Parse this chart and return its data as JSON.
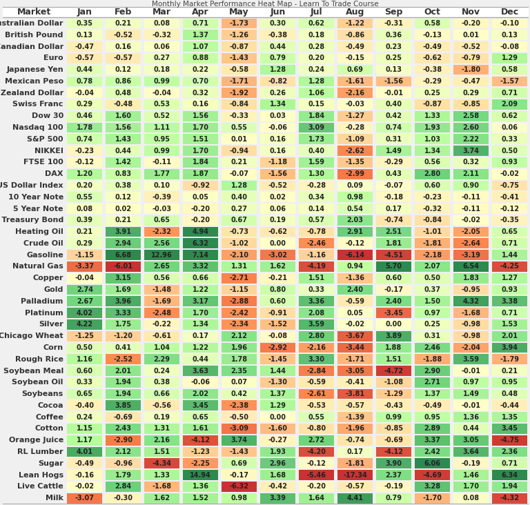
{
  "markets": [
    "Australian Dollar",
    "British Pound",
    "Canadian Dollar",
    "Euro",
    "Japanese Yen",
    "Mexican Peso",
    "New Zealand Dollar",
    "Swiss Franc",
    "Dow 30",
    "Nasdaq 100",
    "S&P 500",
    "NIKKEI",
    "FTSE 100",
    "DAX",
    "US Dollar Index",
    "10 Year Note",
    "5 Year Note",
    "U.S. Treasury Bond",
    "Heating Oil",
    "Crude Oil",
    "Gasoline",
    "Natural Gas",
    "Copper",
    "Gold",
    "Palladium",
    "Platinum",
    "Silver",
    "Chicago Wheat",
    "Corn",
    "Rough Rice",
    "Soybean Meal",
    "Soybean Oil",
    "Soybeans",
    "Cocoa",
    "Coffee",
    "Cotton",
    "Orange Juice",
    "RL Lumber",
    "Sugar",
    "Lean Hogs",
    "Live Cattle",
    "Milk"
  ],
  "months": [
    "Jan",
    "Feb",
    "Mar",
    "Apr",
    "May",
    "Jun",
    "Jul",
    "Aug",
    "Sep",
    "Oct",
    "Nov",
    "Dec"
  ],
  "values": [
    [
      0.35,
      0.21,
      0.08,
      0.71,
      -1.73,
      0.3,
      0.62,
      -1.22,
      -0.31,
      0.58,
      -0.2,
      -0.1
    ],
    [
      0.13,
      -0.52,
      -0.32,
      1.37,
      -1.26,
      -0.38,
      0.18,
      -0.86,
      0.36,
      -0.13,
      0.01,
      0.13
    ],
    [
      -0.47,
      0.16,
      0.06,
      1.07,
      -0.87,
      0.44,
      0.28,
      -0.49,
      0.23,
      -0.49,
      -0.52,
      -0.08
    ],
    [
      -0.57,
      -0.57,
      0.27,
      0.88,
      -1.43,
      0.79,
      0.2,
      -0.15,
      0.25,
      -0.62,
      -0.79,
      1.29
    ],
    [
      0.44,
      0.12,
      0.18,
      0.22,
      -0.58,
      1.28,
      0.24,
      0.69,
      0.13,
      -0.38,
      -1.8,
      0.58
    ],
    [
      0.78,
      0.86,
      0.99,
      0.7,
      -1.71,
      -0.82,
      1.28,
      -1.61,
      -1.56,
      -0.29,
      -0.47,
      -1.57
    ],
    [
      -0.04,
      0.48,
      -0.04,
      0.32,
      -1.92,
      0.26,
      1.06,
      -2.16,
      -0.01,
      0.25,
      0.29,
      0.71
    ],
    [
      0.29,
      -0.48,
      0.53,
      0.16,
      -0.84,
      1.34,
      0.15,
      -0.03,
      0.4,
      -0.87,
      -0.85,
      2.09
    ],
    [
      0.46,
      1.6,
      0.52,
      1.56,
      -0.33,
      0.03,
      1.84,
      -1.27,
      0.42,
      1.33,
      2.58,
      0.62
    ],
    [
      1.78,
      1.56,
      1.11,
      1.7,
      0.55,
      -0.06,
      3.09,
      -0.28,
      0.74,
      1.93,
      2.6,
      0.06
    ],
    [
      0.74,
      1.43,
      0.95,
      1.51,
      0.01,
      0.16,
      1.73,
      -1.09,
      0.31,
      1.03,
      2.22,
      0.33
    ],
    [
      -0.23,
      0.44,
      0.99,
      1.7,
      -0.94,
      0.16,
      0.4,
      -2.62,
      1.49,
      1.34,
      3.74,
      0.5
    ],
    [
      -0.12,
      1.42,
      -0.11,
      1.84,
      0.21,
      -1.18,
      1.59,
      -1.35,
      -0.29,
      0.56,
      0.32,
      0.93
    ],
    [
      1.2,
      0.83,
      1.77,
      1.87,
      -0.07,
      -1.56,
      1.3,
      -2.99,
      0.43,
      2.8,
      2.11,
      -0.02
    ],
    [
      0.2,
      0.38,
      0.1,
      -0.92,
      1.28,
      -0.52,
      -0.28,
      0.09,
      -0.07,
      0.6,
      0.9,
      -0.75
    ],
    [
      0.55,
      0.12,
      -0.39,
      0.05,
      0.4,
      0.02,
      0.34,
      0.98,
      -0.18,
      -0.23,
      -0.11,
      -0.41
    ],
    [
      0.08,
      0.02,
      -0.03,
      -0.2,
      0.27,
      0.06,
      0.14,
      0.54,
      0.17,
      -0.32,
      -0.11,
      -0.12
    ],
    [
      0.39,
      0.21,
      0.65,
      -0.2,
      0.67,
      0.19,
      0.57,
      2.03,
      -0.74,
      -0.84,
      -0.02,
      -0.35
    ],
    [
      0.21,
      3.91,
      -2.32,
      4.94,
      -0.73,
      -0.62,
      -0.78,
      2.91,
      2.51,
      -1.01,
      -2.05,
      0.65
    ],
    [
      0.29,
      2.94,
      2.56,
      6.32,
      -1.02,
      0.0,
      -2.46,
      -0.12,
      1.81,
      -1.81,
      -2.64,
      0.71
    ],
    [
      -1.15,
      6.68,
      12.96,
      7.14,
      -2.1,
      -3.02,
      -1.16,
      -6.14,
      -4.51,
      -2.18,
      -3.19,
      1.44
    ],
    [
      -3.37,
      -6.01,
      2.65,
      3.32,
      1.31,
      1.62,
      -4.19,
      0.94,
      5.7,
      2.07,
      6.54,
      -4.25
    ],
    [
      -0.04,
      3.15,
      0.56,
      0.66,
      -2.71,
      -0.21,
      1.51,
      -1.36,
      0.6,
      0.5,
      1.83,
      1.27
    ],
    [
      2.74,
      1.69,
      -1.48,
      1.22,
      -1.15,
      0.8,
      0.33,
      2.4,
      -0.17,
      0.37,
      -0.95,
      0.93
    ],
    [
      2.67,
      3.96,
      -1.69,
      3.17,
      -2.88,
      0.6,
      3.36,
      -0.59,
      2.4,
      1.5,
      4.32,
      3.38
    ],
    [
      4.02,
      3.33,
      -2.48,
      1.7,
      -2.42,
      -0.91,
      2.08,
      0.05,
      -3.45,
      0.97,
      -1.68,
      0.71
    ],
    [
      4.22,
      1.75,
      -0.22,
      1.34,
      -2.34,
      -1.52,
      3.59,
      -0.02,
      0.0,
      0.25,
      -0.98,
      1.53
    ],
    [
      -1.25,
      -1.2,
      -0.61,
      0.17,
      2.12,
      -0.08,
      2.8,
      -3.67,
      3.89,
      0.31,
      -0.98,
      2.01
    ],
    [
      0.5,
      0.41,
      1.04,
      1.22,
      1.96,
      -2.92,
      -2.16,
      -3.44,
      1.88,
      2.46,
      -2.04,
      3.94
    ],
    [
      1.16,
      -2.52,
      2.29,
      0.44,
      1.78,
      -1.45,
      3.3,
      -1.71,
      1.51,
      -1.88,
      3.59,
      -1.79
    ],
    [
      0.6,
      2.01,
      0.24,
      3.63,
      2.35,
      1.44,
      -2.84,
      -3.05,
      -4.72,
      2.9,
      -0.01,
      0.21
    ],
    [
      0.33,
      1.94,
      0.38,
      -0.06,
      0.07,
      -1.3,
      -0.59,
      -0.41,
      -1.08,
      2.71,
      0.97,
      0.95
    ],
    [
      0.65,
      1.94,
      0.66,
      2.02,
      0.42,
      1.37,
      -2.61,
      -3.81,
      -1.29,
      1.37,
      1.49,
      0.48
    ],
    [
      -0.4,
      3.85,
      -0.56,
      3.45,
      -2.38,
      1.29,
      -0.53,
      -0.57,
      -0.43,
      -0.49,
      -0.01,
      -0.44
    ],
    [
      0.24,
      -0.69,
      0.19,
      0.65,
      -0.5,
      0.0,
      0.55,
      -1.39,
      0.99,
      0.95,
      1.36,
      1.35
    ],
    [
      1.15,
      2.43,
      1.31,
      1.61,
      -3.09,
      -1.6,
      -0.8,
      -1.96,
      -0.85,
      2.89,
      0.44,
      3.45
    ],
    [
      1.17,
      -2.9,
      2.16,
      -4.12,
      3.74,
      -0.27,
      2.72,
      -0.74,
      -0.69,
      3.37,
      3.05,
      -4.75
    ],
    [
      4.01,
      2.12,
      1.51,
      -1.23,
      -1.43,
      1.93,
      -4.2,
      0.17,
      -4.12,
      2.42,
      3.64,
      2.36
    ],
    [
      -0.49,
      -0.96,
      -4.34,
      -2.25,
      0.69,
      2.96,
      -0.12,
      -1.81,
      3.9,
      6.06,
      -0.19,
      0.71
    ],
    [
      -0.16,
      1.79,
      1.33,
      14.94,
      -0.17,
      1.68,
      -5.46,
      -17.34,
      2.37,
      -4.69,
      1.46,
      6.34
    ],
    [
      -0.02,
      2.84,
      -1.68,
      1.36,
      -6.32,
      -0.42,
      -0.2,
      -0.57,
      -0.19,
      3.28,
      1.7,
      1.94
    ],
    [
      -3.07,
      -0.3,
      1.62,
      1.52,
      0.98,
      3.39,
      1.64,
      4.41,
      0.79,
      -1.7,
      0.08,
      -4.32
    ]
  ],
  "title": "Monthly Market Performance Heat Map - Learn To Trade Course",
  "bg_color": "#f0f0f0",
  "header_font_size": 9,
  "cell_font_size": 7.0,
  "row_label_font_size": 8.0
}
